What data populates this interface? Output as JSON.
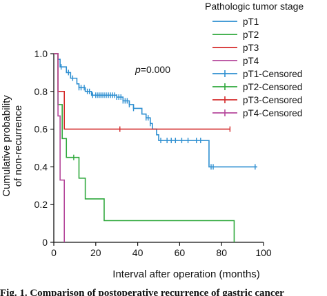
{
  "chart_data": {
    "type": "line",
    "step": true,
    "xlabel": "Interval after operation (months)",
    "ylabel": [
      "Cumulative probability",
      "of non-recurrence"
    ],
    "xlim": [
      0,
      100
    ],
    "ylim": [
      0,
      1.0
    ],
    "xticks": [
      0,
      20,
      40,
      60,
      80,
      100
    ],
    "yticks": [
      0,
      0.2,
      0.4,
      0.6,
      0.8,
      1.0
    ],
    "ytick_labels": [
      "0",
      "0.2",
      "0.4",
      "0.6",
      "0.8",
      "1.0"
    ],
    "annotation": {
      "label": "p",
      "value": "=0.000"
    },
    "legend_title": "Pathologic tumor stage",
    "legend_placement": "top-right",
    "series": [
      {
        "name": "pT1",
        "color": "#2e8fd1",
        "steps": [
          [
            0,
            1.0
          ],
          [
            2,
            0.97
          ],
          [
            3,
            0.93
          ],
          [
            6,
            0.9
          ],
          [
            8,
            0.87
          ],
          [
            11,
            0.84
          ],
          [
            12,
            0.82
          ],
          [
            15,
            0.8
          ],
          [
            18,
            0.78
          ],
          [
            30,
            0.77
          ],
          [
            33,
            0.75
          ],
          [
            36,
            0.73
          ],
          [
            38,
            0.71
          ],
          [
            42,
            0.68
          ],
          [
            44,
            0.66
          ],
          [
            46,
            0.63
          ],
          [
            47,
            0.6
          ],
          [
            49,
            0.57
          ],
          [
            50,
            0.54
          ],
          [
            74,
            0.4
          ],
          [
            97,
            0.4
          ]
        ],
        "censored": [
          3.5,
          7,
          9,
          12,
          13,
          14.5,
          16,
          17,
          18.5,
          20,
          21,
          22,
          23,
          24,
          25,
          26,
          27,
          28,
          29,
          30,
          31,
          32,
          33,
          34,
          35,
          36,
          38,
          44,
          45,
          46,
          51,
          54,
          56,
          58,
          61,
          64,
          68,
          70,
          75,
          76,
          96
        ]
      },
      {
        "name": "pT2",
        "color": "#2fa83c",
        "steps": [
          [
            0,
            1.0
          ],
          [
            2,
            0.73
          ],
          [
            4,
            0.55
          ],
          [
            6,
            0.45
          ],
          [
            12,
            0.34
          ],
          [
            15,
            0.23
          ],
          [
            24,
            0.115
          ],
          [
            86,
            0.115
          ],
          [
            86,
            0.0
          ]
        ],
        "censored": [
          9.5
        ]
      },
      {
        "name": "pT3",
        "color": "#d42a2a",
        "steps": [
          [
            0,
            1.0
          ],
          [
            2,
            0.8
          ],
          [
            5,
            0.6
          ],
          [
            84,
            0.6
          ]
        ],
        "censored": [
          31.5,
          84
        ]
      },
      {
        "name": "pT4",
        "color": "#b5479b",
        "steps": [
          [
            0,
            1.0
          ],
          [
            2,
            0.67
          ],
          [
            3,
            0.33
          ],
          [
            5,
            0.33
          ],
          [
            5,
            0.0
          ]
        ],
        "censored": []
      }
    ],
    "legend_entries": [
      "pT1",
      "pT2",
      "pT3",
      "pT4",
      "pT1-Censored",
      "pT2-Censored",
      "pT3-Censored",
      "pT4-Censored"
    ]
  },
  "caption": "Fig. 1. Comparison of postoperative recurrence of gastric cancer"
}
